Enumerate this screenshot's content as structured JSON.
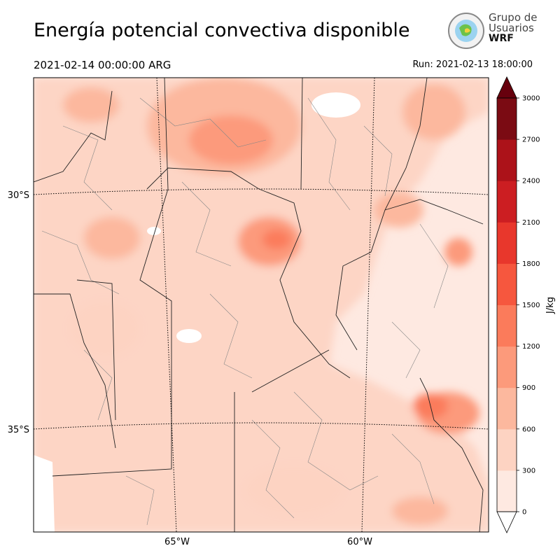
{
  "title": "Energía potencial convectiva disponible",
  "valid_time": "2021-02-14 00:00:00 ARG",
  "run_time": "Run: 2021-02-13 18:00:00",
  "logo": {
    "line1": "Grupo de",
    "line2": "Usuarios",
    "line3": "WRF",
    "icon": "globe-logo-icon"
  },
  "map": {
    "lat_labels": [
      "30°S",
      "35°S"
    ],
    "lon_labels": [
      "65°W",
      "60°W"
    ]
  },
  "colorbar": {
    "unit": "J/kg",
    "ticks": [
      "0",
      "300",
      "600",
      "900",
      "1200",
      "1500",
      "1800",
      "2100",
      "2400",
      "2700",
      "3000"
    ],
    "colors": [
      "#fee9e1",
      "#fdd3c2",
      "#fcb89e",
      "#fc9a7b",
      "#fb7b5b",
      "#f6573e",
      "#e8372c",
      "#cc1e22",
      "#ac1219",
      "#7b0b13"
    ],
    "extend_color": "#67000d"
  }
}
